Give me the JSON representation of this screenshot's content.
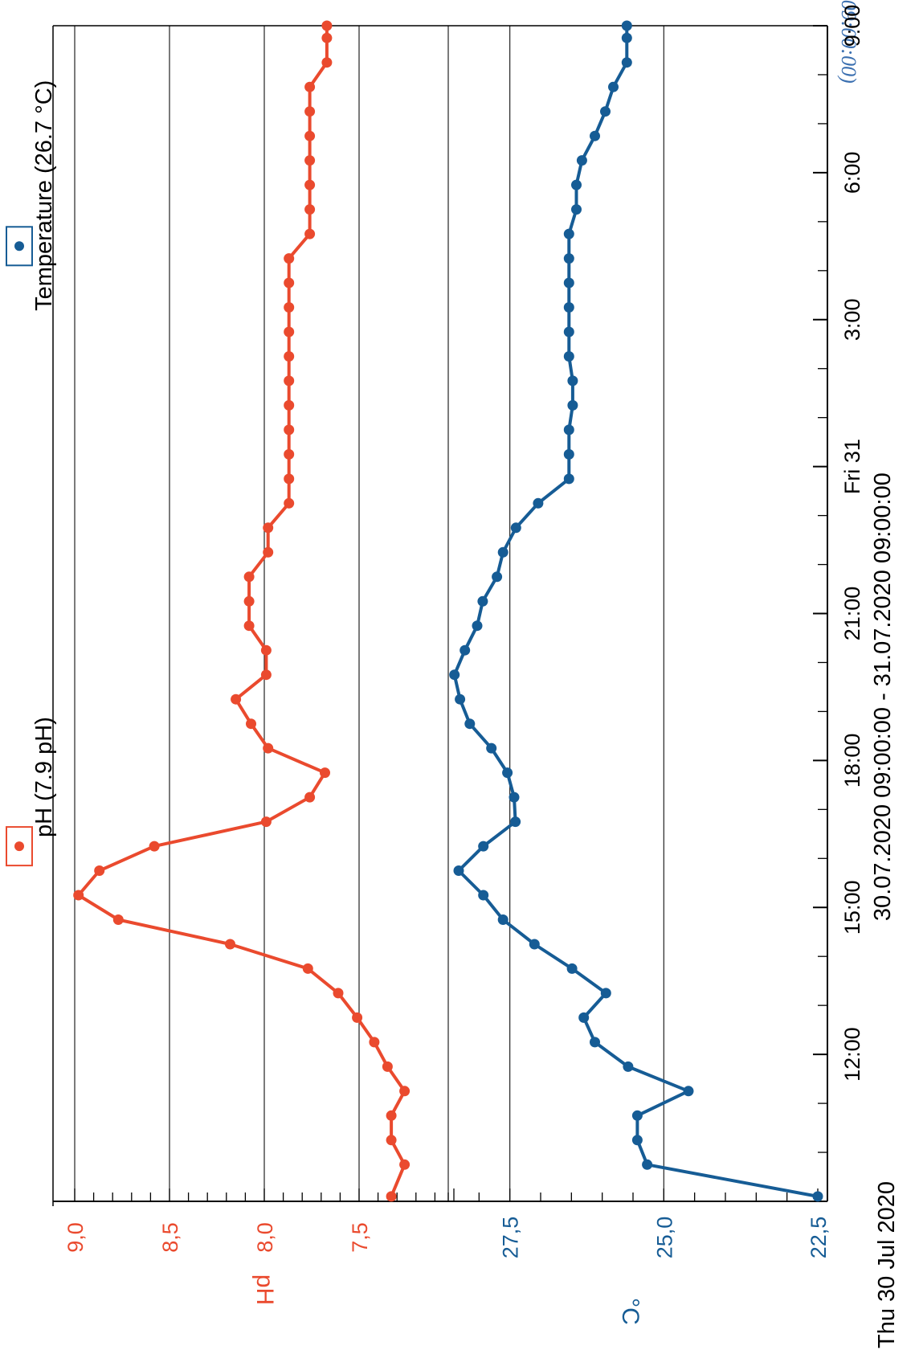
{
  "top_fragment": "...2.20  09:00:00)",
  "chart_data": {
    "type": "line",
    "x_axis": {
      "ticks": [
        "12:00",
        "15:00",
        "18:00",
        "21:00",
        "Fri 31",
        "3:00",
        "6:00",
        "9:00"
      ],
      "start_label": "Thu 30 Jul 2020",
      "range_label": "30.07.2020 09:00:00 - 31.07.2020 09:00:00"
    },
    "ph_axis": {
      "title": "pH",
      "ticks": [
        "9,0",
        "8,5",
        "8,0",
        "7,5"
      ],
      "ylim": [
        7.0,
        9.0
      ]
    },
    "temp_axis": {
      "title": "°C",
      "ticks": [
        "27,5",
        "25,0",
        "22,5"
      ],
      "ylim": [
        22.5,
        28.5
      ]
    },
    "legend": [
      {
        "key": "ph",
        "label": "pH (7.9 pH)"
      },
      {
        "key": "temperature",
        "label": "Temperature (26.7 °C)"
      }
    ],
    "colors": {
      "ph": "#ea4a2e",
      "temperature": "#165c95"
    },
    "grid": true,
    "series": [
      {
        "key": "ph",
        "name": "pH",
        "axis": "ph",
        "x": [
          9.1,
          9.75,
          10.25,
          10.75,
          11.25,
          11.75,
          12.25,
          12.75,
          13.25,
          13.75,
          14.25,
          14.75,
          15.25,
          15.75,
          16.25,
          16.75,
          17.25,
          17.75,
          18.25,
          18.75,
          19.25,
          19.75,
          20.25,
          20.75,
          21.25,
          21.75,
          22.25,
          22.75,
          23.25,
          23.75,
          24.25,
          24.75,
          25.25,
          25.75,
          26.25,
          26.75,
          27.25,
          27.75,
          28.25,
          28.75,
          29.25,
          29.75,
          30.25,
          30.75,
          31.25,
          31.75,
          32.25,
          32.75,
          33.0
        ],
        "y": [
          7.33,
          7.26,
          7.33,
          7.33,
          7.26,
          7.35,
          7.42,
          7.51,
          7.61,
          7.77,
          8.18,
          8.77,
          8.98,
          8.87,
          8.58,
          7.99,
          7.76,
          7.68,
          7.98,
          8.07,
          8.15,
          7.99,
          7.99,
          8.08,
          8.08,
          8.08,
          7.98,
          7.98,
          7.87,
          7.87,
          7.87,
          7.87,
          7.87,
          7.87,
          7.87,
          7.87,
          7.87,
          7.87,
          7.87,
          7.76,
          7.76,
          7.76,
          7.76,
          7.76,
          7.76,
          7.76,
          7.67,
          7.67,
          7.67
        ]
      },
      {
        "key": "temperature",
        "name": "Temperature",
        "axis": "temperature",
        "x": [
          9.1,
          9.75,
          10.25,
          10.75,
          11.25,
          11.75,
          12.25,
          12.75,
          13.25,
          13.75,
          14.25,
          14.75,
          15.25,
          15.75,
          16.25,
          16.75,
          17.25,
          17.75,
          18.25,
          18.75,
          19.25,
          19.75,
          20.25,
          20.75,
          21.25,
          21.75,
          22.25,
          22.75,
          23.25,
          23.75,
          24.25,
          24.75,
          25.25,
          25.75,
          26.25,
          26.75,
          27.25,
          27.75,
          28.25,
          28.75,
          29.25,
          29.75,
          30.25,
          30.75,
          31.25,
          31.75,
          32.25,
          32.75,
          33.0
        ],
        "y": [
          22.5,
          25.27,
          25.43,
          25.43,
          24.6,
          25.58,
          26.12,
          26.3,
          25.94,
          26.49,
          27.1,
          27.61,
          27.93,
          28.33,
          27.93,
          27.41,
          27.43,
          27.54,
          27.8,
          28.15,
          28.31,
          28.4,
          28.23,
          28.03,
          27.94,
          27.71,
          27.61,
          27.4,
          27.04,
          26.54,
          26.54,
          26.54,
          26.48,
          26.48,
          26.54,
          26.54,
          26.54,
          26.54,
          26.54,
          26.54,
          26.42,
          26.42,
          26.33,
          26.12,
          25.95,
          25.82,
          25.6,
          25.6,
          25.6
        ]
      }
    ]
  }
}
